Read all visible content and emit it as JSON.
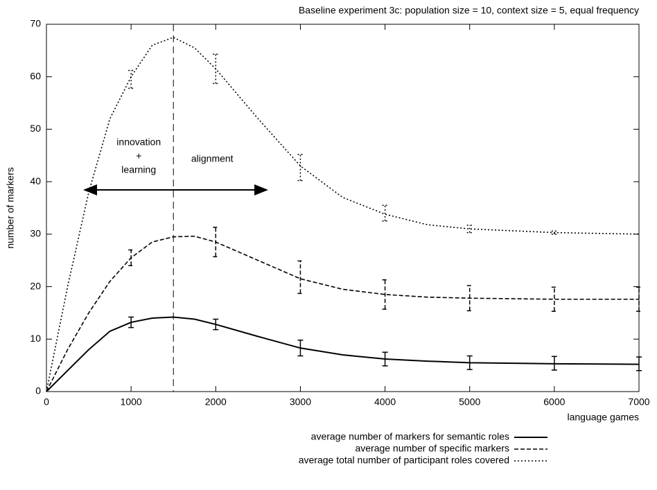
{
  "chart_data": {
    "type": "line",
    "title": "Baseline experiment 3c: population size = 10, context size = 5, equal frequency",
    "xlabel": "language games",
    "ylabel": "number of markers",
    "x": [
      0,
      250,
      500,
      750,
      1000,
      1250,
      1500,
      1750,
      2000,
      2500,
      3000,
      3500,
      4000,
      4500,
      5000,
      6000,
      7000
    ],
    "series": [
      {
        "name": "average number of markers for semantic roles",
        "color": "#000000",
        "style": "solid",
        "values": [
          0,
          4,
          8,
          11.5,
          13.2,
          14,
          14.2,
          13.8,
          12.8,
          10.5,
          8.3,
          7,
          6.2,
          5.8,
          5.5,
          5.3,
          5.2
        ],
        "error_x": [
          1000,
          2000,
          3000,
          4000,
          5000,
          6000,
          7000
        ],
        "error_values": [
          13.2,
          12.8,
          8.3,
          6.2,
          5.5,
          5.4,
          5.3
        ],
        "errors": [
          1,
          1,
          1.5,
          1.3,
          1.3,
          1.3,
          1.3
        ]
      },
      {
        "name": "average number of specific markers",
        "color": "#000000",
        "style": "dashed",
        "values": [
          0,
          8,
          15,
          21,
          25.5,
          28.5,
          29.5,
          29.6,
          28.5,
          25,
          21.5,
          19.5,
          18.5,
          18,
          17.8,
          17.6,
          17.6
        ],
        "error_x": [
          1000,
          2000,
          3000,
          4000,
          5000,
          6000,
          7000
        ],
        "error_values": [
          25.5,
          28.5,
          21.8,
          18.5,
          17.8,
          17.6,
          17.6
        ],
        "errors": [
          1.5,
          2.8,
          3.1,
          2.8,
          2.4,
          2.3,
          2.3
        ]
      },
      {
        "name": "average total number of participant roles covered",
        "color": "#000000",
        "style": "dotted",
        "values": [
          0,
          20,
          38,
          52,
          60,
          66,
          67.5,
          65.5,
          61.5,
          52,
          43,
          37,
          33.8,
          31.8,
          31,
          30.3,
          30
        ],
        "error_x": [
          1000,
          2000,
          3000,
          4000,
          5000,
          6000
        ],
        "error_values": [
          59.5,
          61.5,
          42.7,
          34,
          31,
          30.3
        ],
        "errors": [
          1.7,
          2.8,
          2.5,
          1.5,
          0.7,
          0.3
        ]
      }
    ],
    "annotations": [
      {
        "text": [
          "innovation",
          "+",
          "learning"
        ]
      },
      {
        "text": "alignment"
      }
    ],
    "phase_boundary": 1500,
    "xlim": [
      0,
      7000
    ],
    "xticks": [
      0,
      1000,
      2000,
      3000,
      4000,
      5000,
      6000,
      7000
    ],
    "ylim": [
      0,
      70
    ],
    "yticks": [
      0,
      10,
      20,
      30,
      40,
      50,
      60,
      70
    ],
    "legend": "bottom-right"
  }
}
